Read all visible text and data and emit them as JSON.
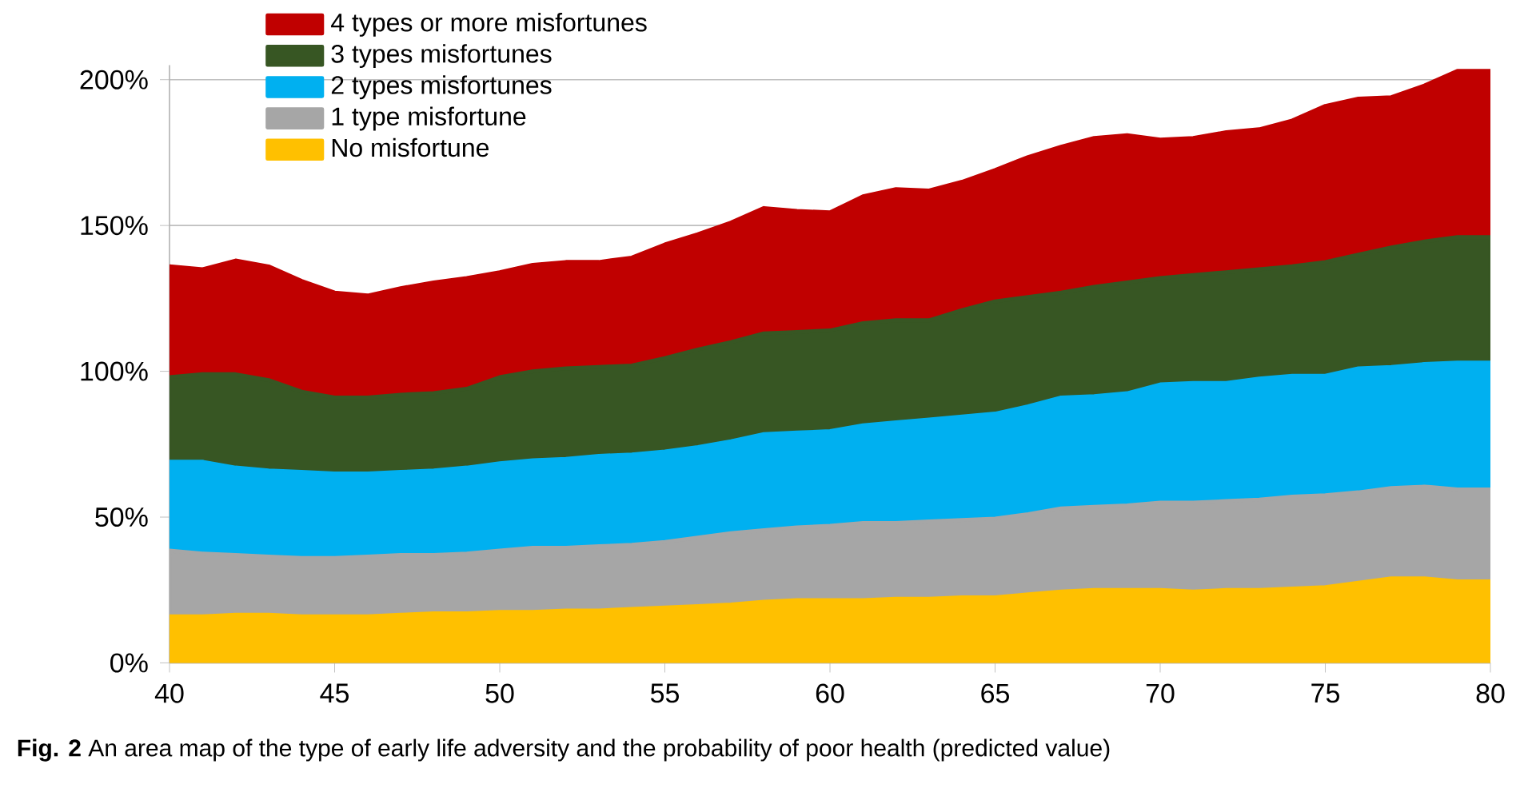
{
  "chart_data": {
    "type": "area",
    "stacked": true,
    "grid": "y",
    "legend": "top left",
    "x": [
      40,
      41,
      42,
      43,
      44,
      45,
      46,
      47,
      48,
      49,
      50,
      51,
      52,
      53,
      54,
      55,
      56,
      57,
      58,
      59,
      60,
      61,
      62,
      63,
      64,
      65,
      66,
      67,
      68,
      69,
      70,
      71,
      72,
      73,
      74,
      75,
      76,
      77,
      78,
      79,
      80
    ],
    "xlim": [
      40,
      80
    ],
    "xticks": [
      40,
      45,
      50,
      55,
      60,
      65,
      70,
      75,
      80
    ],
    "ylim": [
      0,
      205
    ],
    "yticks": [
      {
        "value": 0,
        "label": "0%"
      },
      {
        "value": 50,
        "label": "50%"
      },
      {
        "value": 100,
        "label": "100%"
      },
      {
        "value": 150,
        "label": "150%"
      },
      {
        "value": 200,
        "label": "200%"
      }
    ],
    "series": [
      {
        "name": "No misfortune",
        "color": "#ffc000",
        "values": [
          16,
          16,
          16.5,
          16.5,
          16,
          16,
          16,
          16.5,
          17,
          17,
          17.5,
          17.5,
          18,
          18,
          18.5,
          19,
          19.5,
          20,
          21,
          21.5,
          21.5,
          21.5,
          22,
          22,
          22.5,
          22.5,
          23.5,
          24.5,
          25,
          25,
          25,
          24.5,
          25,
          25,
          25.5,
          26,
          27.5,
          29,
          29,
          28,
          28
        ]
      },
      {
        "name": "1 type misfortune",
        "color": "#a6a6a6",
        "values": [
          22.5,
          21.5,
          20.5,
          20,
          20,
          20,
          20.5,
          20.5,
          20,
          20.5,
          21,
          22,
          21.5,
          22,
          22,
          22.5,
          23.5,
          24.5,
          24.5,
          25,
          25.5,
          26.5,
          26,
          26.5,
          26.5,
          27,
          27.5,
          28.5,
          28.5,
          29,
          30,
          30.5,
          30.5,
          31,
          31.5,
          31.5,
          31,
          31,
          31.5,
          31.5,
          31.5
        ]
      },
      {
        "name": "2 types misfortunes",
        "color": "#00b0f0",
        "values": [
          30.5,
          31.5,
          30,
          29.5,
          29.5,
          29,
          28.5,
          28.5,
          29,
          29.5,
          30,
          30,
          30.5,
          31,
          31,
          31,
          31,
          31.5,
          33,
          32.5,
          32.5,
          33.5,
          34.5,
          35,
          35.5,
          36,
          37,
          38,
          38,
          38.5,
          40.5,
          41,
          40.5,
          41.5,
          41.5,
          41,
          42.5,
          41.5,
          42,
          43.5,
          43.5
        ]
      },
      {
        "name": "3 types misfortunes",
        "color": "#375623",
        "values": [
          29,
          30,
          32,
          31,
          27.5,
          26,
          26,
          26.5,
          26.5,
          27,
          29.5,
          30.5,
          31,
          30.5,
          30.5,
          32,
          33.5,
          34,
          34.5,
          34.5,
          34.5,
          35,
          35,
          34,
          36.5,
          38.5,
          37.5,
          36,
          37.5,
          38,
          36.5,
          37,
          38,
          37.5,
          37.5,
          39,
          39,
          41,
          42,
          43,
          43
        ]
      },
      {
        "name": "4 types or more misfortunes",
        "color": "#c00000",
        "values": [
          38,
          36,
          39,
          39,
          38,
          36,
          35,
          36.5,
          38,
          38,
          36,
          36.5,
          36.5,
          36,
          37,
          39,
          39.5,
          41,
          43,
          41.5,
          40.5,
          43.5,
          45,
          44.5,
          44,
          45,
          48,
          50,
          51,
          50.5,
          47.5,
          47,
          48,
          48,
          50,
          53.5,
          53.5,
          51.5,
          53.5,
          57,
          57
        ]
      }
    ],
    "annotations": [
      "**Fig. 2** An area map of the type of early life adversity and the probability of poor health (predicted value)"
    ]
  }
}
